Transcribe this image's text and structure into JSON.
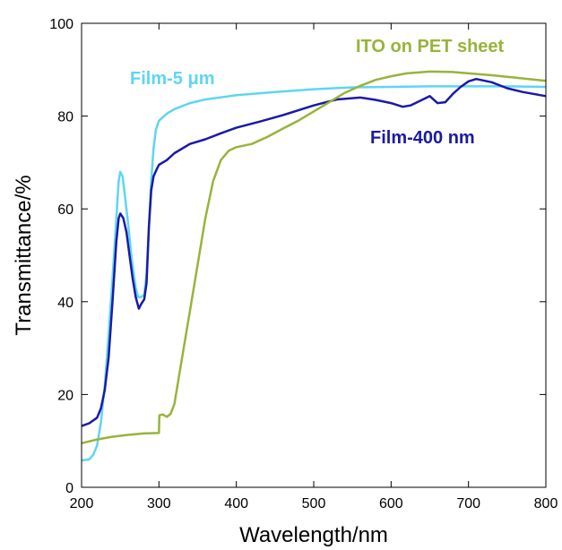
{
  "chart_data": {
    "type": "line",
    "xlabel": "Wavelength/nm",
    "ylabel": "Transmittance/%",
    "xlim": [
      200,
      800
    ],
    "ylim": [
      0,
      100
    ],
    "xticks": [
      200,
      300,
      400,
      500,
      600,
      700,
      800
    ],
    "yticks": [
      0,
      20,
      40,
      60,
      80,
      100
    ],
    "xtick_labels": [
      "200",
      "300",
      "400",
      "500",
      "600",
      "700",
      "800"
    ],
    "ytick_labels": [
      "0",
      "20",
      "40",
      "60",
      "80",
      "100"
    ],
    "grid": false,
    "series": [
      {
        "name": "Film-5 μm",
        "color": "#5fd5f2",
        "points": [
          [
            200,
            5.8
          ],
          [
            210,
            6.0
          ],
          [
            215,
            7
          ],
          [
            220,
            9
          ],
          [
            225,
            14
          ],
          [
            230,
            22
          ],
          [
            235,
            33
          ],
          [
            240,
            45
          ],
          [
            245,
            58
          ],
          [
            248,
            66
          ],
          [
            250,
            68
          ],
          [
            253,
            67
          ],
          [
            256,
            63
          ],
          [
            260,
            57
          ],
          [
            265,
            49
          ],
          [
            270,
            43
          ],
          [
            273,
            41
          ],
          [
            277,
            41
          ],
          [
            281,
            41.5
          ],
          [
            284,
            46
          ],
          [
            287,
            56
          ],
          [
            290,
            66
          ],
          [
            293,
            73
          ],
          [
            296,
            77
          ],
          [
            300,
            79
          ],
          [
            310,
            80.5
          ],
          [
            320,
            81.5
          ],
          [
            340,
            82.8
          ],
          [
            360,
            83.6
          ],
          [
            400,
            84.5
          ],
          [
            450,
            85.2
          ],
          [
            500,
            85.8
          ],
          [
            550,
            86.2
          ],
          [
            600,
            86.3
          ],
          [
            650,
            86.4
          ],
          [
            700,
            86.4
          ],
          [
            750,
            86.4
          ],
          [
            800,
            86.3
          ]
        ]
      },
      {
        "name": "Film-400 nm",
        "color": "#1a1aa6",
        "points": [
          [
            200,
            13.2
          ],
          [
            210,
            13.8
          ],
          [
            220,
            15
          ],
          [
            225,
            17
          ],
          [
            230,
            21
          ],
          [
            235,
            28
          ],
          [
            240,
            40
          ],
          [
            245,
            53
          ],
          [
            248,
            58
          ],
          [
            250,
            59
          ],
          [
            254,
            58
          ],
          [
            258,
            55
          ],
          [
            262,
            50
          ],
          [
            266,
            45
          ],
          [
            270,
            41
          ],
          [
            274,
            38.5
          ],
          [
            277,
            39.5
          ],
          [
            281,
            40.5
          ],
          [
            284,
            44
          ],
          [
            287,
            56
          ],
          [
            290,
            64
          ],
          [
            293,
            67
          ],
          [
            297,
            68.5
          ],
          [
            300,
            69.5
          ],
          [
            310,
            70.5
          ],
          [
            320,
            72
          ],
          [
            340,
            74
          ],
          [
            360,
            75
          ],
          [
            380,
            76.3
          ],
          [
            400,
            77.5
          ],
          [
            430,
            78.8
          ],
          [
            460,
            80.2
          ],
          [
            500,
            82.3
          ],
          [
            530,
            83.6
          ],
          [
            560,
            84
          ],
          [
            580,
            83.5
          ],
          [
            600,
            82.8
          ],
          [
            615,
            82
          ],
          [
            625,
            82.3
          ],
          [
            640,
            83.5
          ],
          [
            650,
            84.3
          ],
          [
            660,
            82.8
          ],
          [
            670,
            83
          ],
          [
            680,
            84.8
          ],
          [
            690,
            86.3
          ],
          [
            700,
            87.5
          ],
          [
            710,
            88
          ],
          [
            730,
            87.3
          ],
          [
            750,
            86
          ],
          [
            770,
            85.2
          ],
          [
            800,
            84.3
          ]
        ]
      },
      {
        "name": "ITO on PET sheet",
        "color": "#97b43a",
        "points": [
          [
            200,
            9.5
          ],
          [
            220,
            10.3
          ],
          [
            240,
            10.9
          ],
          [
            260,
            11.3
          ],
          [
            280,
            11.6
          ],
          [
            300,
            11.7
          ],
          [
            300.5,
            15.5
          ],
          [
            305,
            15.7
          ],
          [
            310,
            15.2
          ],
          [
            315,
            15.8
          ],
          [
            320,
            18
          ],
          [
            330,
            28
          ],
          [
            340,
            38
          ],
          [
            350,
            48
          ],
          [
            360,
            58
          ],
          [
            370,
            66
          ],
          [
            380,
            70.5
          ],
          [
            390,
            72.5
          ],
          [
            400,
            73.3
          ],
          [
            420,
            74
          ],
          [
            440,
            75.5
          ],
          [
            460,
            77.3
          ],
          [
            480,
            79
          ],
          [
            500,
            81
          ],
          [
            520,
            83
          ],
          [
            540,
            85
          ],
          [
            560,
            86.5
          ],
          [
            580,
            87.8
          ],
          [
            600,
            88.6
          ],
          [
            620,
            89.2
          ],
          [
            650,
            89.6
          ],
          [
            680,
            89.5
          ],
          [
            700,
            89.2
          ],
          [
            730,
            88.8
          ],
          [
            760,
            88.3
          ],
          [
            800,
            87.6
          ]
        ]
      }
    ]
  }
}
